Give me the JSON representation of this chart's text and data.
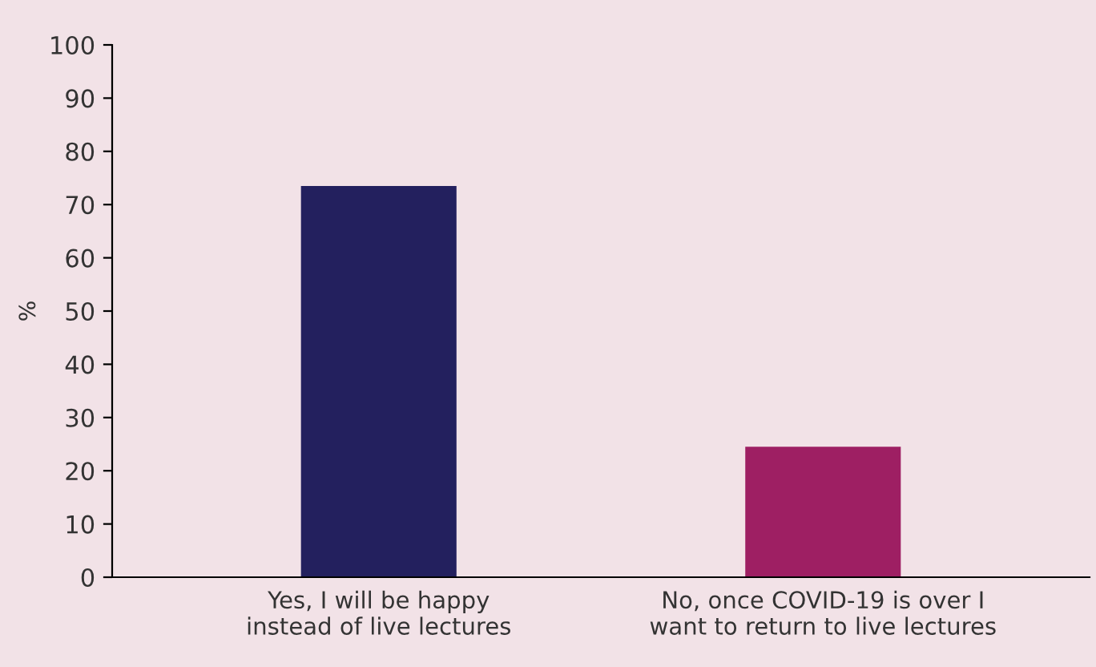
{
  "chart_data": {
    "type": "bar",
    "ylabel": "%",
    "categories": [
      "Yes, I will be happy\ninstead of live lectures",
      "No, once COVID-19 is over I\nwant to return to live lectures"
    ],
    "values": [
      73.5,
      24.5
    ],
    "colors": [
      "#23205e",
      "#9e1f63"
    ],
    "ylim": [
      0,
      100
    ],
    "yticks": [
      0,
      10,
      20,
      30,
      40,
      50,
      60,
      70,
      80,
      90,
      100
    ],
    "grid": false,
    "legend": false
  }
}
